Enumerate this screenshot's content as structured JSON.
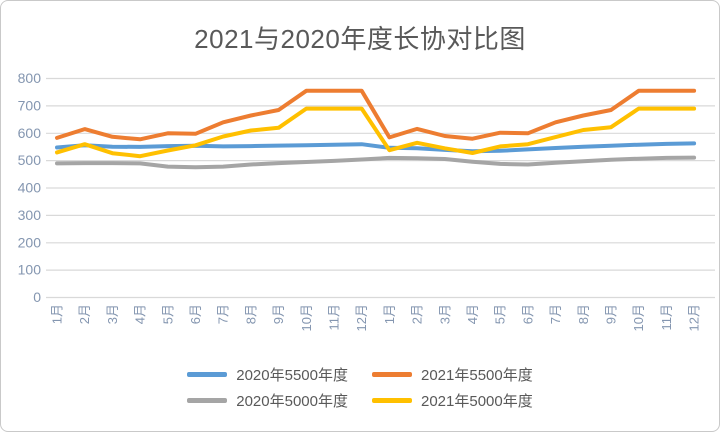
{
  "window": {
    "background": "#FFFFFF",
    "border_color": "#C9C9C9"
  },
  "chart_data": {
    "type": "line",
    "title": "2021与2020年度长协对比图",
    "title_color": "#595959",
    "categories": [
      "1月",
      "2月",
      "3月",
      "4月",
      "5月",
      "6月",
      "7月",
      "8月",
      "9月",
      "10月",
      "11月",
      "12月",
      "1月",
      "2月",
      "3月",
      "4月",
      "5月",
      "6月",
      "7月",
      "8月",
      "9月",
      "10月",
      "11月",
      "12月"
    ],
    "series": [
      {
        "name": "2020年5500年度",
        "color": "#5B9BD5",
        "values": [
          548,
          556,
          551,
          550,
          553,
          554,
          552,
          553,
          555,
          556,
          558,
          560,
          547,
          545,
          539,
          534,
          536,
          541,
          546,
          551,
          554,
          558,
          561,
          563
        ]
      },
      {
        "name": "2021年5500年度",
        "color": "#ED7D31",
        "values": [
          583,
          615,
          587,
          578,
          600,
          598,
          640,
          665,
          685,
          755,
          755,
          755,
          585,
          616,
          590,
          580,
          602,
          600,
          640,
          665,
          685,
          755,
          755,
          755
        ]
      },
      {
        "name": "2020年5000年度",
        "color": "#A5A5A5",
        "values": [
          490,
          491,
          491,
          490,
          478,
          476,
          478,
          486,
          491,
          495,
          499,
          504,
          510,
          509,
          506,
          496,
          488,
          486,
          492,
          498,
          503,
          507,
          510,
          511
        ]
      },
      {
        "name": "2021年5000年度",
        "color": "#FFC000",
        "values": [
          530,
          560,
          527,
          516,
          537,
          556,
          588,
          610,
          620,
          690,
          690,
          690,
          538,
          565,
          545,
          528,
          552,
          560,
          586,
          612,
          622,
          690,
          690,
          690
        ]
      }
    ],
    "ylim": [
      0,
      800
    ],
    "ytick_step": 100,
    "grid": true,
    "gridline_color": "#D9D9D9",
    "axis_label_color": "#8496B0",
    "legend_position": "bottom",
    "legend_text_color": "#595959"
  }
}
